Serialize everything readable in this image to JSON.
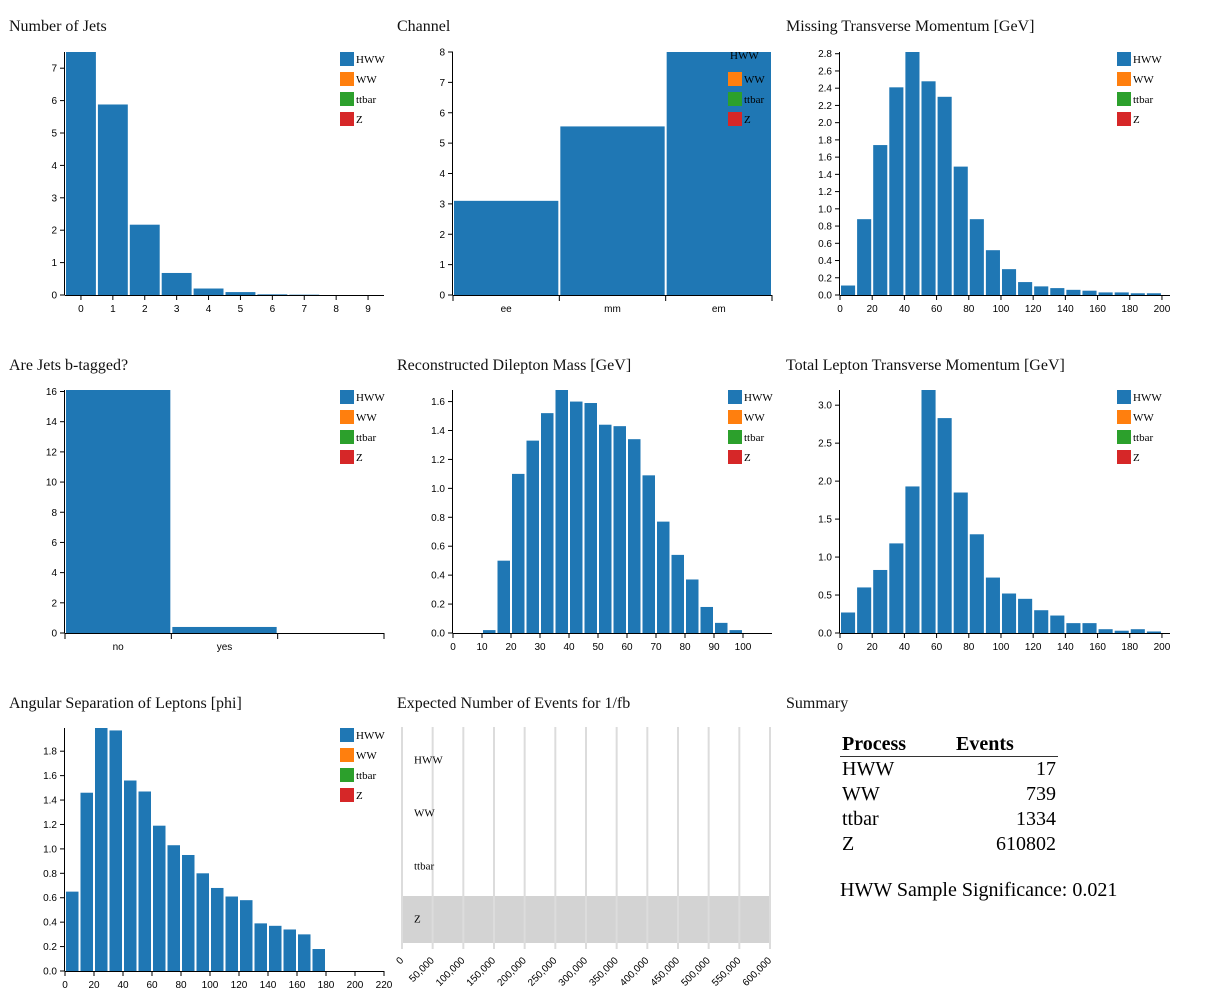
{
  "legend": {
    "items": [
      {
        "label": "HWW",
        "color": "#1f77b4"
      },
      {
        "label": "WW",
        "color": "#ff7f0e"
      },
      {
        "label": "ttbar",
        "color": "#2ca02c"
      },
      {
        "label": "Z",
        "color": "#d62728"
      }
    ]
  },
  "chart_data": [
    {
      "id": "njets",
      "type": "bar",
      "title": "Number of Jets",
      "bin_edges": [
        -0.5,
        0.5,
        1.5,
        2.5,
        3.5,
        4.5,
        5.5,
        6.5,
        7.5,
        8.5,
        9.5
      ],
      "values": [
        7.5,
        5.88,
        2.17,
        0.68,
        0.2,
        0.09,
        0.02,
        0.01,
        0,
        0
      ],
      "xlim": [
        -0.5,
        9.5
      ],
      "ylim": [
        0,
        7.5
      ],
      "xticks": [
        0,
        1,
        2,
        3,
        4,
        5,
        6,
        7,
        8,
        9
      ],
      "yticks": [
        0,
        1,
        2,
        3,
        4,
        5,
        6,
        7
      ],
      "series": [
        {
          "name": "HWW",
          "color": "#1f77b4"
        }
      ]
    },
    {
      "id": "channel",
      "type": "bar",
      "title": "Channel",
      "categories": [
        "ee",
        "mm",
        "em"
      ],
      "values": [
        3.1,
        5.55,
        8.0
      ],
      "ylim": [
        0,
        8
      ],
      "yticks": [
        0,
        1,
        2,
        3,
        4,
        5,
        6,
        7,
        8
      ],
      "series": [
        {
          "name": "HWW",
          "color": "#1f77b4"
        }
      ]
    },
    {
      "id": "met",
      "type": "bar",
      "title": "Missing Transverse Momentum [GeV]",
      "bin_width": 10,
      "bin_start": 0,
      "values": [
        0.11,
        0.88,
        1.74,
        2.41,
        2.82,
        2.48,
        2.3,
        1.49,
        0.88,
        0.52,
        0.3,
        0.15,
        0.1,
        0.08,
        0.06,
        0.05,
        0.03,
        0.03,
        0.02,
        0.02
      ],
      "xlim": [
        0,
        205
      ],
      "ylim": [
        0,
        2.82
      ],
      "xticks": [
        0,
        20,
        40,
        60,
        80,
        100,
        120,
        140,
        160,
        180,
        200
      ],
      "yticks": [
        "0.0",
        "0.2",
        "0.4",
        "0.6",
        "0.8",
        "1.0",
        "1.2",
        "1.4",
        "1.6",
        "1.8",
        "2.0",
        "2.2",
        "2.4",
        "2.6",
        "2.8"
      ],
      "series": [
        {
          "name": "HWW",
          "color": "#1f77b4"
        }
      ]
    },
    {
      "id": "btag",
      "type": "bar",
      "title": "Are Jets b-tagged?",
      "categories": [
        "no",
        "yes",
        ""
      ],
      "values": [
        16.1,
        0.4,
        0
      ],
      "ylim": [
        0,
        16.1
      ],
      "yticks": [
        0,
        2,
        4,
        6,
        8,
        10,
        12,
        14,
        16
      ],
      "series": [
        {
          "name": "HWW",
          "color": "#1f77b4"
        }
      ]
    },
    {
      "id": "mll",
      "type": "bar",
      "title": "Reconstructed Dilepton Mass [GeV]",
      "bin_width": 5,
      "bin_start": 0,
      "values": [
        0,
        0,
        0.02,
        0.5,
        1.1,
        1.33,
        1.52,
        1.68,
        1.6,
        1.59,
        1.44,
        1.43,
        1.34,
        1.09,
        0.77,
        0.54,
        0.37,
        0.18,
        0.07,
        0.02
      ],
      "xlim": [
        0,
        110
      ],
      "ylim": [
        0,
        1.68
      ],
      "xticks": [
        0,
        10,
        20,
        30,
        40,
        50,
        60,
        70,
        80,
        90,
        100
      ],
      "yticks": [
        "0.0",
        "0.2",
        "0.4",
        "0.6",
        "0.8",
        "1.0",
        "1.2",
        "1.4",
        "1.6"
      ],
      "series": [
        {
          "name": "HWW",
          "color": "#1f77b4"
        }
      ]
    },
    {
      "id": "ptll",
      "type": "bar",
      "title": "Total Lepton Transverse Momentum [GeV]",
      "bin_width": 10,
      "bin_start": 0,
      "values": [
        0.27,
        0.6,
        0.83,
        1.18,
        1.93,
        3.2,
        2.83,
        1.85,
        1.3,
        0.73,
        0.52,
        0.45,
        0.3,
        0.23,
        0.13,
        0.13,
        0.05,
        0.03,
        0.05,
        0.02
      ],
      "xlim": [
        0,
        205
      ],
      "ylim": [
        0,
        3.2
      ],
      "xticks": [
        0,
        20,
        40,
        60,
        80,
        100,
        120,
        140,
        160,
        180,
        200
      ],
      "yticks": [
        "0.0",
        "0.5",
        "1.0",
        "1.5",
        "2.0",
        "2.5",
        "3.0"
      ],
      "series": [
        {
          "name": "HWW",
          "color": "#1f77b4"
        }
      ]
    },
    {
      "id": "dphi",
      "type": "bar",
      "title": "Angular Separation of Leptons [phi]",
      "bin_width": 10,
      "bin_start": 0,
      "values": [
        0.65,
        1.46,
        1.99,
        1.97,
        1.56,
        1.47,
        1.19,
        1.03,
        0.95,
        0.8,
        0.68,
        0.61,
        0.58,
        0.39,
        0.37,
        0.34,
        0.3,
        0.18
      ],
      "xlim": [
        0,
        220
      ],
      "ylim": [
        0,
        1.99
      ],
      "xticks": [
        0,
        20,
        40,
        60,
        80,
        100,
        120,
        140,
        160,
        180,
        200,
        220
      ],
      "yticks": [
        "0.0",
        "0.2",
        "0.4",
        "0.6",
        "0.8",
        "1.0",
        "1.2",
        "1.4",
        "1.6",
        "1.8"
      ],
      "series": [
        {
          "name": "HWW",
          "color": "#1f77b4"
        }
      ]
    },
    {
      "id": "events",
      "type": "bar",
      "title": "Expected Number of Events for 1/fb",
      "orientation": "horizontal",
      "categories": [
        "HWW",
        "WW",
        "ttbar",
        "Z"
      ],
      "values": [
        17,
        739,
        1334,
        610802
      ],
      "highlight": "Z",
      "highlight_color": "#d3d3d3",
      "xlim": [
        0,
        600000
      ],
      "xticks": [
        "0",
        "50,000",
        "100,000",
        "150,000",
        "200,000",
        "250,000",
        "300,000",
        "350,000",
        "400,000",
        "450,000",
        "500,000",
        "550,000",
        "600,000"
      ]
    }
  ],
  "summary": {
    "title": "Summary",
    "headers": [
      "Process",
      "Events"
    ],
    "rows": [
      {
        "process": "HWW",
        "events": "17"
      },
      {
        "process": "WW",
        "events": "739"
      },
      {
        "process": "ttbar",
        "events": "1334"
      },
      {
        "process": "Z",
        "events": "610802"
      }
    ],
    "significance": "HWW Sample Significance: 0.021"
  }
}
